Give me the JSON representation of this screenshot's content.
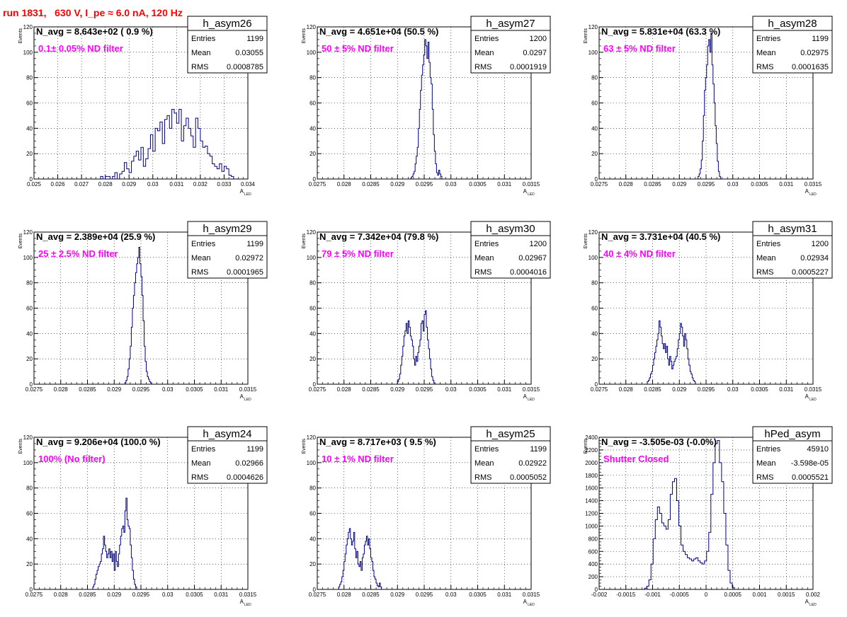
{
  "run_title": "run 1831,   630 V, I_pe ≈ 6.0 nA, 120 Hz",
  "colors": {
    "title": "#ff0000",
    "annotation": "#ff00ff",
    "histogram": "#000080",
    "frame": "#000000",
    "grid": "#000000"
  },
  "stat_labels": {
    "entries": "Entries",
    "mean": "Mean",
    "rms": "RMS"
  },
  "chart_data": [
    {
      "type": "histogram",
      "name": "h_asym26",
      "navg": "N_avg = 8.643e+02 ( 0.9 %)",
      "filter": "0.1± 0.05% ND filter",
      "entries": "1199",
      "mean": "0.03055",
      "rms": "0.0008785",
      "xlim": [
        0.025,
        0.034
      ],
      "ylim": [
        0,
        120
      ],
      "xticks": [
        0.025,
        0.026,
        0.027,
        0.028,
        0.029,
        0.03,
        0.031,
        0.032,
        0.033,
        0.034
      ],
      "xtick_labels": [
        "0.025",
        "0.026",
        "0.027",
        "0.028",
        "0.029",
        "0.03",
        "0.031",
        "0.032",
        "0.033",
        "0.034"
      ],
      "yticks": [
        0,
        20,
        40,
        60,
        80,
        100,
        120
      ],
      "ytick_labels": [
        "0",
        "20",
        "40",
        "60",
        "80",
        "100",
        "120"
      ],
      "ylabel": "Events",
      "xlabel": "A",
      "xlabel_sub": "LED",
      "bin_start": 0.0278,
      "bin_width": 0.0001,
      "counts": [
        2,
        0,
        2,
        2,
        0,
        2,
        5,
        0,
        4,
        6,
        13,
        8,
        5,
        14,
        18,
        22,
        15,
        25,
        10,
        16,
        24,
        35,
        22,
        40,
        38,
        45,
        28,
        47,
        50,
        40,
        55,
        52,
        44,
        55,
        30,
        42,
        48,
        40,
        34,
        25,
        48,
        40,
        30,
        25,
        26,
        20,
        18,
        12,
        10,
        8,
        12,
        6,
        10,
        8,
        3,
        2
      ]
    },
    {
      "type": "histogram",
      "name": "h_asym27",
      "navg": "N_avg = 4.651e+04 (50.5 %)",
      "filter": "50 ± 5% ND filter",
      "entries": "1200",
      "mean": "0.0297",
      "rms": "0.0001919",
      "xlim": [
        0.0275,
        0.0315
      ],
      "ylim": [
        0,
        120
      ],
      "xticks": [
        0.0275,
        0.028,
        0.0285,
        0.029,
        0.0295,
        0.03,
        0.0305,
        0.031,
        0.0315
      ],
      "xtick_labels": [
        "0.0275",
        "0.028",
        "0.0285",
        "0.029",
        "0.0295",
        "0.03",
        "0.0305",
        "0.031",
        "0.0315"
      ],
      "yticks": [
        0,
        20,
        40,
        60,
        80,
        100,
        120
      ],
      "ytick_labels": [
        "0",
        "20",
        "40",
        "60",
        "80",
        "100",
        "120"
      ],
      "ylabel": "Events",
      "xlabel": "A",
      "xlabel_sub": "LED",
      "bin_start": 0.02925,
      "bin_width": 2e-05,
      "counts": [
        1,
        2,
        4,
        6,
        12,
        18,
        25,
        40,
        55,
        70,
        82,
        90,
        98,
        110,
        105,
        95,
        108,
        92,
        80,
        75,
        55,
        35,
        22,
        12,
        5,
        3,
        7,
        4,
        2
      ]
    },
    {
      "type": "histogram",
      "name": "h_asym28",
      "navg": "N_avg = 5.831e+04 (63.3 %)",
      "filter": "63 ± 5% ND filter",
      "entries": "1199",
      "mean": "0.02975",
      "rms": "0.0001635",
      "xlim": [
        0.0275,
        0.0315
      ],
      "ylim": [
        0,
        120
      ],
      "xticks": [
        0.0275,
        0.028,
        0.0285,
        0.029,
        0.0295,
        0.03,
        0.0305,
        0.031,
        0.0315
      ],
      "xtick_labels": [
        "0.0275",
        "0.028",
        "0.0285",
        "0.029",
        "0.0295",
        "0.03",
        "0.0305",
        "0.031",
        "0.0315"
      ],
      "yticks": [
        0,
        20,
        40,
        60,
        80,
        100,
        120
      ],
      "ytick_labels": [
        "0",
        "20",
        "40",
        "60",
        "80",
        "100",
        "120"
      ],
      "ylabel": "Events",
      "xlabel": "A",
      "xlabel_sub": "LED",
      "bin_start": 0.02935,
      "bin_width": 2e-05,
      "counts": [
        2,
        4,
        8,
        15,
        30,
        50,
        70,
        80,
        90,
        105,
        110,
        100,
        115,
        90,
        75,
        60,
        42,
        28,
        14,
        6,
        2
      ]
    },
    {
      "type": "histogram",
      "name": "h_asym29",
      "navg": "N_avg = 2.389e+04 (25.9 %)",
      "filter": "25 ± 2.5% ND filter",
      "entries": "1199",
      "mean": "0.02972",
      "rms": "0.0001965",
      "xlim": [
        0.0275,
        0.0315
      ],
      "ylim": [
        0,
        120
      ],
      "xticks": [
        0.0275,
        0.028,
        0.0285,
        0.029,
        0.0295,
        0.03,
        0.0305,
        0.031,
        0.0315
      ],
      "xtick_labels": [
        "0.0275",
        "0.028",
        "0.0285",
        "0.029",
        "0.0295",
        "0.03",
        "0.0305",
        "0.031",
        "0.0315"
      ],
      "yticks": [
        0,
        20,
        40,
        60,
        80,
        100,
        120
      ],
      "ytick_labels": [
        "0",
        "20",
        "40",
        "60",
        "80",
        "100",
        "120"
      ],
      "ylabel": "Events",
      "xlabel": "A",
      "xlabel_sub": "LED",
      "bin_start": 0.0292,
      "bin_width": 2e-05,
      "counts": [
        1,
        3,
        6,
        12,
        20,
        30,
        45,
        60,
        70,
        80,
        88,
        95,
        100,
        108,
        95,
        85,
        70,
        50,
        30,
        18,
        10,
        6,
        4,
        2,
        1
      ]
    },
    {
      "type": "histogram",
      "name": "h_asym30",
      "navg": "N_avg = 7.342e+04 (79.8 %)",
      "filter": "79 ± 5% ND filter",
      "entries": "1200",
      "mean": "0.02967",
      "rms": "0.0004016",
      "xlim": [
        0.0275,
        0.0315
      ],
      "ylim": [
        0,
        120
      ],
      "xticks": [
        0.0275,
        0.028,
        0.0285,
        0.029,
        0.0295,
        0.03,
        0.0305,
        0.031,
        0.0315
      ],
      "xtick_labels": [
        "0.0275",
        "0.028",
        "0.0285",
        "0.029",
        "0.0295",
        "0.03",
        "0.0305",
        "0.031",
        "0.0315"
      ],
      "yticks": [
        0,
        20,
        40,
        60,
        80,
        100,
        120
      ],
      "ytick_labels": [
        "0",
        "20",
        "40",
        "60",
        "80",
        "100",
        "120"
      ],
      "ylabel": "Events",
      "xlabel": "A",
      "xlabel_sub": "LED",
      "bin_start": 0.029,
      "bin_width": 2e-05,
      "counts": [
        2,
        4,
        8,
        15,
        22,
        30,
        38,
        42,
        48,
        40,
        50,
        45,
        38,
        35,
        30,
        20,
        15,
        22,
        18,
        25,
        30,
        35,
        48,
        50,
        42,
        55,
        58,
        45,
        35,
        28,
        20,
        12,
        6,
        3,
        1
      ]
    },
    {
      "type": "histogram",
      "name": "h_asym31",
      "navg": "N_avg = 3.731e+04 (40.5 %)",
      "filter": "40 ± 4% ND filter",
      "entries": "1200",
      "mean": "0.02934",
      "rms": "0.0005227",
      "xlim": [
        0.0275,
        0.0315
      ],
      "ylim": [
        0,
        120
      ],
      "xticks": [
        0.0275,
        0.028,
        0.0285,
        0.029,
        0.0295,
        0.03,
        0.0305,
        0.031,
        0.0315
      ],
      "xtick_labels": [
        "0.0275",
        "0.028",
        "0.0285",
        "0.029",
        "0.0295",
        "0.03",
        "0.0305",
        "0.031",
        "0.0315"
      ],
      "yticks": [
        0,
        20,
        40,
        60,
        80,
        100,
        120
      ],
      "ytick_labels": [
        "0",
        "20",
        "40",
        "60",
        "80",
        "100",
        "120"
      ],
      "ylabel": "Events",
      "xlabel": "A",
      "xlabel_sub": "LED",
      "bin_start": 0.0284,
      "bin_width": 2e-05,
      "counts": [
        2,
        3,
        5,
        8,
        10,
        15,
        20,
        25,
        30,
        35,
        40,
        50,
        45,
        38,
        32,
        28,
        32,
        25,
        30,
        20,
        15,
        22,
        18,
        12,
        15,
        18,
        20,
        22,
        28,
        35,
        40,
        48,
        45,
        38,
        30,
        40,
        35,
        28,
        20,
        15,
        10,
        8,
        5,
        3,
        2
      ]
    },
    {
      "type": "histogram",
      "name": "h_asym24",
      "navg": "N_avg = 9.206e+04 (100.0 %)",
      "filter": "100% (No filter)",
      "entries": "1199",
      "mean": "0.02966",
      "rms": "0.0004626",
      "xlim": [
        0.0275,
        0.0315
      ],
      "ylim": [
        0,
        120
      ],
      "xticks": [
        0.0275,
        0.028,
        0.0285,
        0.029,
        0.0295,
        0.03,
        0.0305,
        0.031,
        0.0315
      ],
      "xtick_labels": [
        "0.0275",
        "0.028",
        "0.0285",
        "0.029",
        "0.0295",
        "0.03",
        "0.0305",
        "0.031",
        "0.0315"
      ],
      "yticks": [
        0,
        20,
        40,
        60,
        80,
        100,
        120
      ],
      "ytick_labels": [
        "0",
        "20",
        "40",
        "60",
        "80",
        "100",
        "120"
      ],
      "ylabel": "Events",
      "xlabel": "A",
      "xlabel_sub": "LED",
      "bin_start": 0.0286,
      "bin_width": 2e-05,
      "counts": [
        2,
        4,
        8,
        12,
        15,
        18,
        20,
        22,
        28,
        32,
        42,
        35,
        30,
        25,
        28,
        32,
        25,
        30,
        22,
        28,
        15,
        30,
        22,
        18,
        28,
        35,
        42,
        48,
        50,
        45,
        62,
        72,
        55,
        50,
        48,
        35,
        25,
        15,
        8,
        4,
        2
      ]
    },
    {
      "type": "histogram",
      "name": "h_asym25",
      "navg": "N_avg = 8.717e+03 ( 9.5 %)",
      "filter": "10 ± 1% ND filter",
      "entries": "1199",
      "mean": "0.02922",
      "rms": "0.0005052",
      "xlim": [
        0.0275,
        0.0315
      ],
      "ylim": [
        0,
        120
      ],
      "xticks": [
        0.0275,
        0.028,
        0.0285,
        0.029,
        0.0295,
        0.03,
        0.0305,
        0.031,
        0.0315
      ],
      "xtick_labels": [
        "0.0275",
        "0.028",
        "0.0285",
        "0.029",
        "0.0295",
        "0.03",
        "0.0305",
        "0.031",
        "0.0315"
      ],
      "yticks": [
        0,
        20,
        40,
        60,
        80,
        100,
        120
      ],
      "ytick_labels": [
        "0",
        "20",
        "40",
        "60",
        "80",
        "100",
        "120"
      ],
      "ylabel": "Events",
      "xlabel": "A",
      "xlabel_sub": "LED",
      "bin_start": 0.0279,
      "bin_width": 2e-05,
      "counts": [
        2,
        4,
        6,
        10,
        15,
        22,
        28,
        35,
        40,
        45,
        48,
        40,
        35,
        38,
        45,
        32,
        25,
        30,
        20,
        18,
        22,
        15,
        25,
        28,
        35,
        38,
        42,
        35,
        40,
        32,
        25,
        22,
        15,
        10,
        8,
        5,
        3,
        2,
        5,
        2
      ]
    },
    {
      "type": "histogram",
      "name": "hPed_asym",
      "navg": "N_avg = -3.505e-03 (-0.0%)",
      "filter": "Shutter Closed",
      "entries": "45910",
      "mean": "-3.598e-05",
      "rms": "0.0005521",
      "xlim": [
        -0.002,
        0.002
      ],
      "ylim": [
        0,
        2400
      ],
      "xticks": [
        -0.002,
        -0.0015,
        -0.001,
        -0.0005,
        0,
        0.0005,
        0.001,
        0.0015,
        0.002
      ],
      "xtick_labels": [
        "-0.002",
        "-0.0015",
        "-0.001",
        "-0.0005",
        "0",
        "0.0005",
        "0.001",
        "0.0015",
        "0.002"
      ],
      "yticks": [
        0,
        200,
        400,
        600,
        800,
        1000,
        1200,
        1400,
        1600,
        1800,
        2000,
        2200,
        2400
      ],
      "ytick_labels": [
        "0",
        "200",
        "400",
        "600",
        "800",
        "1000",
        "1200",
        "1400",
        "1600",
        "1800",
        "2000",
        "2200",
        "2400"
      ],
      "ylabel": "Events",
      "xlabel": "A",
      "xlabel_sub": "LED",
      "bin_start": -0.00115,
      "bin_width": 4e-05,
      "counts": [
        20,
        50,
        150,
        400,
        800,
        1100,
        1300,
        1200,
        1050,
        1000,
        950,
        1100,
        1500,
        1700,
        1750,
        1400,
        1000,
        700,
        600,
        550,
        500,
        480,
        450,
        480,
        500,
        450,
        420,
        400,
        450,
        600,
        900,
        1500,
        2000,
        2300,
        2350,
        2000,
        1700,
        1200,
        700,
        300,
        100,
        30
      ]
    }
  ]
}
